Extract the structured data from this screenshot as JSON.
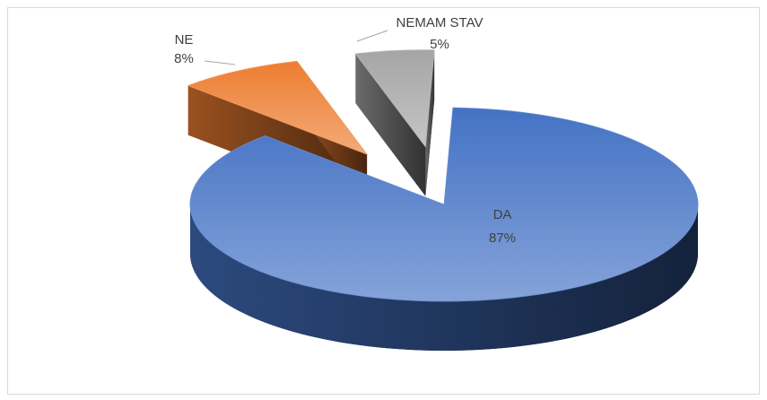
{
  "chart_data": {
    "type": "pie",
    "categories": [
      "DA",
      "NE",
      "NEMAM STAV"
    ],
    "values": [
      87,
      8,
      5
    ],
    "value_labels": [
      "87%",
      "8%",
      "5%"
    ],
    "colors": [
      "#4472c4",
      "#ed7d31",
      "#a5a5a5"
    ]
  }
}
